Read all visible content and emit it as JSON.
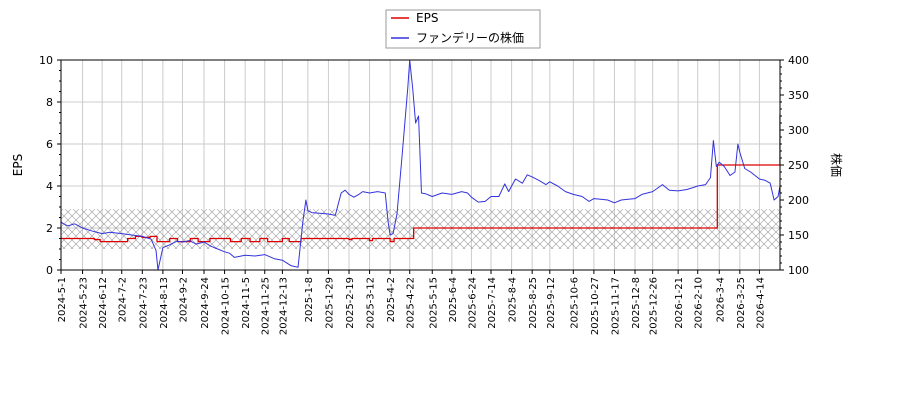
{
  "chart_data": {
    "type": "line",
    "legend": {
      "placement": "top-center"
    },
    "axes": {
      "left": {
        "label": "EPS",
        "ylim": [
          0,
          10
        ],
        "ticks": [
          "0",
          "2",
          "4",
          "6",
          "8",
          "10"
        ]
      },
      "right": {
        "label": "株価",
        "ylim": [
          100,
          400
        ],
        "ticks": [
          "100",
          "150",
          "200",
          "250",
          "300",
          "350",
          "400"
        ]
      },
      "x": {
        "range": [
          "2024-05-01",
          "2026-05-05"
        ],
        "ticks": [
          "2024-5-1",
          "2024-5-23",
          "2024-6-12",
          "2024-7-2",
          "2024-7-23",
          "2024-8-13",
          "2024-9-2",
          "2024-9-24",
          "2024-10-15",
          "2024-11-5",
          "2024-11-25",
          "2024-12-13",
          "2025-1-8",
          "2025-1-29",
          "2025-2-19",
          "2025-3-12",
          "2025-4-2",
          "2025-4-22",
          "2025-5-15",
          "2025-6-4",
          "2025-6-24",
          "2025-7-14",
          "2025-8-4",
          "2025-8-25",
          "2025-9-12",
          "2025-10-6",
          "2025-10-27",
          "2025-11-17",
          "2025-12-8",
          "2025-12-26",
          "2026-1-21",
          "2026-2-10",
          "2026-3-4",
          "2026-3-25",
          "2026-4-14"
        ]
      }
    },
    "grid": true,
    "shaded_band": {
      "axis": "left",
      "from": 1.0,
      "to": 2.9,
      "pattern": "crosshatch"
    },
    "series": [
      {
        "name": "EPS",
        "color": "#dd0000",
        "axis": "left",
        "step": true,
        "points": [
          [
            "2024-05-01",
            1.5
          ],
          [
            "2024-06-04",
            1.45
          ],
          [
            "2024-06-06",
            1.45
          ],
          [
            "2024-06-10",
            1.35
          ],
          [
            "2024-07-08",
            1.5
          ],
          [
            "2024-07-16",
            1.6
          ],
          [
            "2024-07-23",
            1.55
          ],
          [
            "2024-07-31",
            1.6
          ],
          [
            "2024-08-07",
            1.35
          ],
          [
            "2024-08-20",
            1.5
          ],
          [
            "2024-08-28",
            1.35
          ],
          [
            "2024-09-10",
            1.5
          ],
          [
            "2024-09-18",
            1.35
          ],
          [
            "2024-09-30",
            1.5
          ],
          [
            "2024-10-21",
            1.35
          ],
          [
            "2024-11-01",
            1.5
          ],
          [
            "2024-11-10",
            1.35
          ],
          [
            "2024-11-20",
            1.5
          ],
          [
            "2024-11-28",
            1.35
          ],
          [
            "2024-12-13",
            1.5
          ],
          [
            "2024-12-20",
            1.35
          ],
          [
            "2025-01-01",
            1.5
          ],
          [
            "2025-02-19",
            1.45
          ],
          [
            "2025-02-22",
            1.5
          ],
          [
            "2025-03-12",
            1.4
          ],
          [
            "2025-03-15",
            1.5
          ],
          [
            "2025-04-02",
            1.35
          ],
          [
            "2025-04-06",
            1.5
          ],
          [
            "2025-04-26",
            2.0
          ],
          [
            "2026-03-02",
            5.0
          ],
          [
            "2026-05-04",
            5.0
          ],
          [
            "2026-05-05",
            7.4
          ]
        ]
      },
      {
        "name": "ファンデリーの株価",
        "color": "#3333dd",
        "axis": "right",
        "points": [
          [
            "2024-05-01",
            168
          ],
          [
            "2024-05-08",
            163
          ],
          [
            "2024-05-15",
            166
          ],
          [
            "2024-05-23",
            160
          ],
          [
            "2024-06-01",
            156
          ],
          [
            "2024-06-12",
            152
          ],
          [
            "2024-06-20",
            154
          ],
          [
            "2024-07-02",
            152
          ],
          [
            "2024-07-12",
            150
          ],
          [
            "2024-07-23",
            148
          ],
          [
            "2024-08-01",
            144
          ],
          [
            "2024-08-06",
            128
          ],
          [
            "2024-08-08",
            100
          ],
          [
            "2024-08-13",
            132
          ],
          [
            "2024-08-20",
            136
          ],
          [
            "2024-08-27",
            141
          ],
          [
            "2024-09-02",
            140
          ],
          [
            "2024-09-09",
            142
          ],
          [
            "2024-09-16",
            137
          ],
          [
            "2024-09-24",
            140
          ],
          [
            "2024-10-01",
            134
          ],
          [
            "2024-10-08",
            130
          ],
          [
            "2024-10-15",
            126
          ],
          [
            "2024-10-20",
            124
          ],
          [
            "2024-10-25",
            118
          ],
          [
            "2024-11-05",
            121
          ],
          [
            "2024-11-15",
            120
          ],
          [
            "2024-11-25",
            122
          ],
          [
            "2024-12-05",
            116
          ],
          [
            "2024-12-13",
            114
          ],
          [
            "2024-12-22",
            106
          ],
          [
            "2024-12-29",
            104
          ],
          [
            "2025-01-03",
            170
          ],
          [
            "2025-01-06",
            200
          ],
          [
            "2025-01-08",
            185
          ],
          [
            "2025-01-12",
            182
          ],
          [
            "2025-01-20",
            181
          ],
          [
            "2025-01-29",
            180
          ],
          [
            "2025-02-05",
            178
          ],
          [
            "2025-02-11",
            210
          ],
          [
            "2025-02-15",
            214
          ],
          [
            "2025-02-19",
            208
          ],
          [
            "2025-02-24",
            204
          ],
          [
            "2025-03-01",
            208
          ],
          [
            "2025-03-05",
            212
          ],
          [
            "2025-03-12",
            210
          ],
          [
            "2025-03-20",
            212
          ],
          [
            "2025-03-28",
            210
          ],
          [
            "2025-03-31",
            168
          ],
          [
            "2025-04-02",
            150
          ],
          [
            "2025-04-05",
            152
          ],
          [
            "2025-04-09",
            180
          ],
          [
            "2025-04-14",
            260
          ],
          [
            "2025-04-20",
            360
          ],
          [
            "2025-04-22",
            400
          ],
          [
            "2025-04-25",
            360
          ],
          [
            "2025-04-28",
            310
          ],
          [
            "2025-05-01",
            320
          ],
          [
            "2025-05-04",
            210
          ],
          [
            "2025-05-08",
            209
          ],
          [
            "2025-05-15",
            205
          ],
          [
            "2025-05-25",
            210
          ],
          [
            "2025-06-04",
            208
          ],
          [
            "2025-06-14",
            212
          ],
          [
            "2025-06-20",
            210
          ],
          [
            "2025-06-24",
            204
          ],
          [
            "2025-07-01",
            197
          ],
          [
            "2025-07-08",
            198
          ],
          [
            "2025-07-14",
            205
          ],
          [
            "2025-07-22",
            205
          ],
          [
            "2025-07-28",
            223
          ],
          [
            "2025-08-01",
            212
          ],
          [
            "2025-08-04",
            220
          ],
          [
            "2025-08-08",
            230
          ],
          [
            "2025-08-15",
            224
          ],
          [
            "2025-08-20",
            236
          ],
          [
            "2025-08-25",
            233
          ],
          [
            "2025-09-01",
            228
          ],
          [
            "2025-09-08",
            222
          ],
          [
            "2025-09-12",
            226
          ],
          [
            "2025-09-20",
            220
          ],
          [
            "2025-09-28",
            212
          ],
          [
            "2025-10-06",
            208
          ],
          [
            "2025-10-15",
            205
          ],
          [
            "2025-10-22",
            198
          ],
          [
            "2025-10-27",
            202
          ],
          [
            "2025-11-03",
            201
          ],
          [
            "2025-11-10",
            200
          ],
          [
            "2025-11-17",
            196
          ],
          [
            "2025-11-24",
            200
          ],
          [
            "2025-12-01",
            201
          ],
          [
            "2025-12-08",
            202
          ],
          [
            "2025-12-15",
            208
          ],
          [
            "2025-12-26",
            212
          ],
          [
            "2026-01-05",
            222
          ],
          [
            "2026-01-12",
            214
          ],
          [
            "2026-01-21",
            213
          ],
          [
            "2026-01-30",
            215
          ],
          [
            "2026-02-06",
            218
          ],
          [
            "2026-02-10",
            220
          ],
          [
            "2026-02-18",
            222
          ],
          [
            "2026-02-23",
            232
          ],
          [
            "2026-02-26",
            285
          ],
          [
            "2026-03-01",
            248
          ],
          [
            "2026-03-04",
            254
          ],
          [
            "2026-03-09",
            248
          ],
          [
            "2026-03-15",
            235
          ],
          [
            "2026-03-20",
            240
          ],
          [
            "2026-03-23",
            280
          ],
          [
            "2026-03-25",
            268
          ],
          [
            "2026-03-30",
            245
          ],
          [
            "2026-04-05",
            240
          ],
          [
            "2026-04-14",
            230
          ],
          [
            "2026-04-20",
            228
          ],
          [
            "2026-04-25",
            224
          ],
          [
            "2026-04-29",
            200
          ],
          [
            "2026-05-03",
            205
          ],
          [
            "2026-05-05",
            220
          ]
        ]
      }
    ]
  }
}
